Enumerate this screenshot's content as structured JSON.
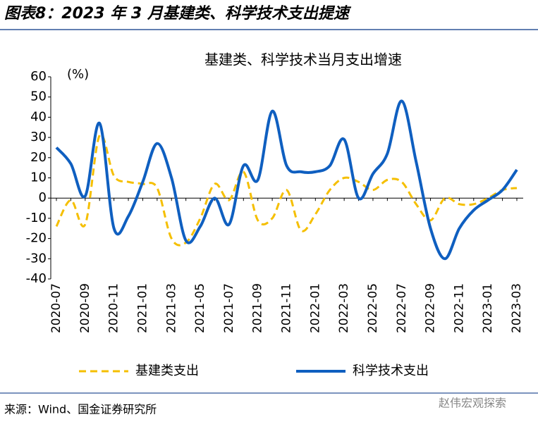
{
  "header": "图表8：2023 年 3 月基建类、科学技术支出提速",
  "chart_data": {
    "type": "line",
    "title": "基建类、科学技术当月支出增速",
    "y_unit": "(%)",
    "categories": [
      "2020-07",
      null,
      "2020-09",
      null,
      "2020-11",
      null,
      "2021-01",
      null,
      "2021-03",
      null,
      "2021-05",
      null,
      "2021-07",
      null,
      "2021-09",
      null,
      "2021-11",
      null,
      "2022-01",
      null,
      "2022-03",
      null,
      "2022-05",
      null,
      "2022-07",
      null,
      "2022-09",
      null,
      "2022-11",
      null,
      "2023-01",
      null,
      "2023-03"
    ],
    "series": [
      {
        "name": "基建类支出",
        "color": "#f5bf00",
        "dash": true,
        "values": [
          -14,
          -1,
          -13,
          31,
          11,
          8,
          7,
          5,
          -20,
          -22,
          -10,
          7,
          -1,
          13,
          -11,
          -10,
          4,
          -16,
          -8,
          4,
          10,
          8,
          4,
          9,
          8,
          -3,
          -11,
          0,
          -3,
          -3,
          0,
          4,
          5
        ]
      },
      {
        "name": "科学技术支出",
        "color": "#0f5fc0",
        "dash": false,
        "values": [
          25,
          17,
          1,
          37,
          -15,
          -9,
          8,
          27,
          10,
          -21,
          -14,
          0,
          -13,
          16,
          9,
          43,
          16,
          13,
          13,
          16,
          29,
          0,
          12,
          22,
          48,
          18,
          -15,
          -30,
          -15,
          -6,
          -1,
          4,
          14
        ]
      }
    ],
    "ylim": [
      -40,
      60
    ],
    "yticks": [
      -40,
      -30,
      -20,
      -10,
      0,
      10,
      20,
      30,
      40,
      50,
      60
    ]
  },
  "source": "来源：Wind、国金证券研究所",
  "watermark": "赵伟宏观探索"
}
